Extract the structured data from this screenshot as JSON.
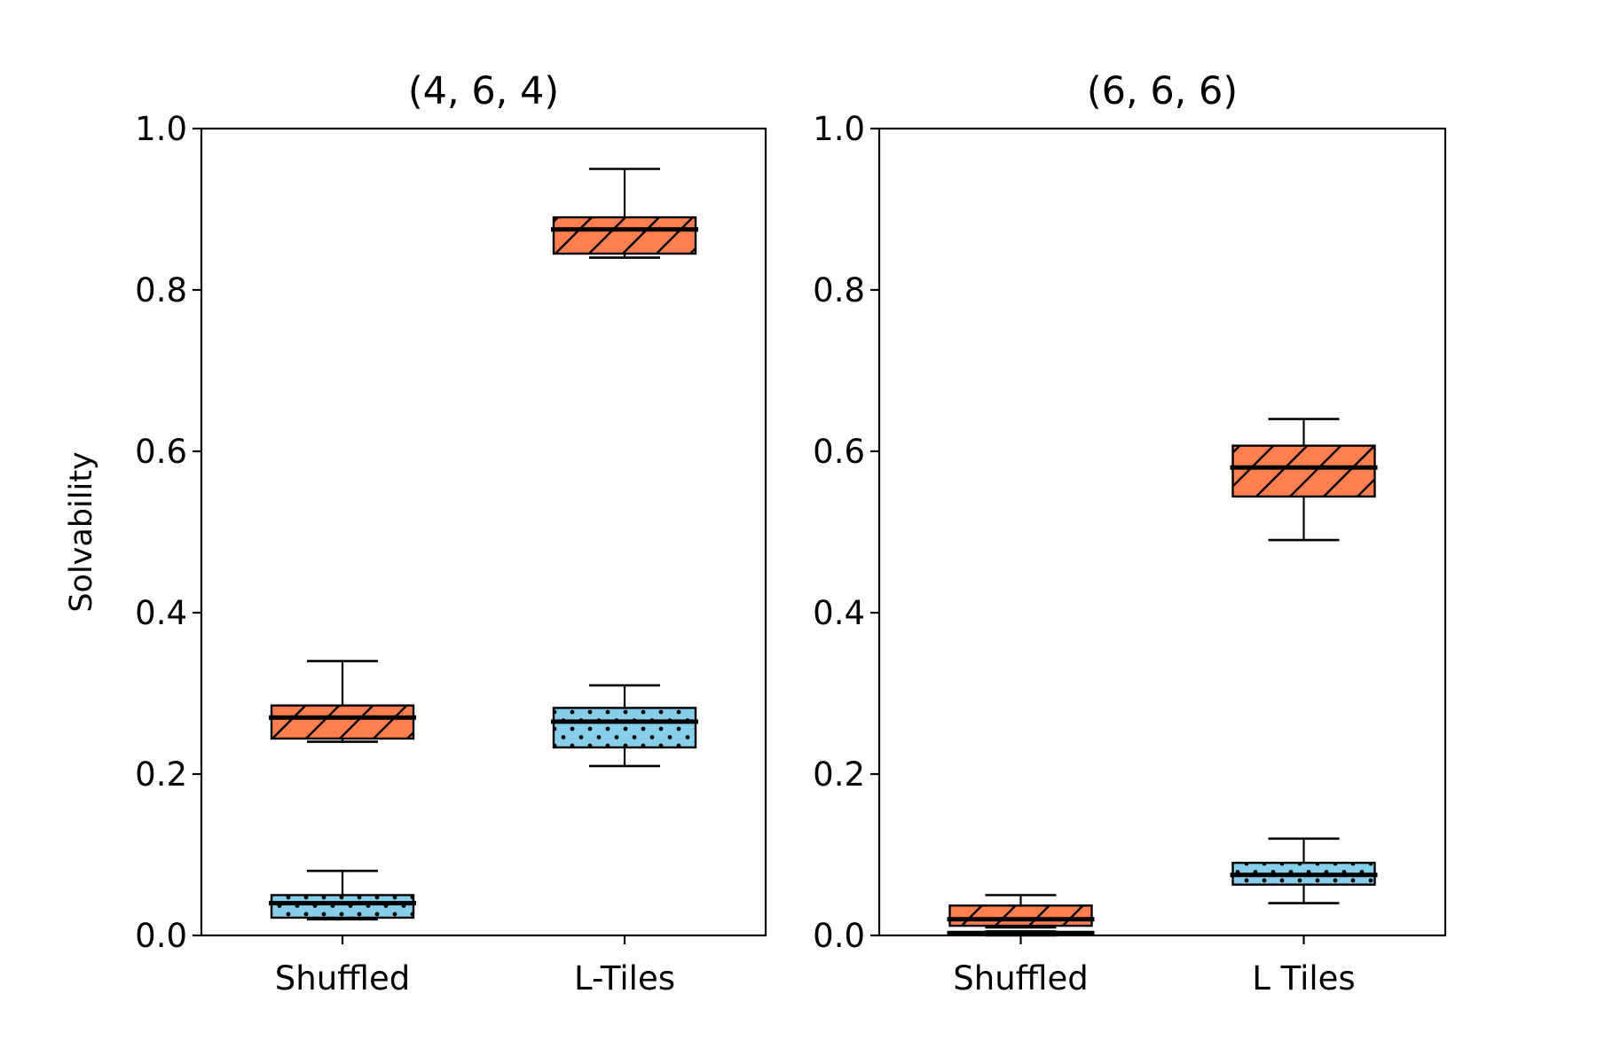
{
  "chart_data": [
    {
      "type": "box",
      "title": "(4, 6, 4)",
      "ylabel": "Solvability",
      "xlabel": "",
      "ylim": [
        0,
        1
      ],
      "yticks": [
        "0.0",
        "0.2",
        "0.4",
        "0.6",
        "0.8",
        "1.0"
      ],
      "categories": [
        "Shuffled",
        "L-Tiles"
      ],
      "grid": false,
      "series": [
        {
          "color": "#ff7f50",
          "hatch": "diagonal",
          "boxes": [
            {
              "category": "Shuffled",
              "min": 0.24,
              "q1": 0.244,
              "median": 0.27,
              "q3": 0.285,
              "max": 0.34
            },
            {
              "category": "L-Tiles",
              "min": 0.84,
              "q1": 0.845,
              "median": 0.875,
              "q3": 0.89,
              "max": 0.95
            }
          ]
        },
        {
          "color": "#87ceeb",
          "hatch": "dots",
          "boxes": [
            {
              "category": "Shuffled",
              "min": 0.02,
              "q1": 0.022,
              "median": 0.04,
              "q3": 0.05,
              "max": 0.08
            },
            {
              "category": "L-Tiles",
              "min": 0.21,
              "q1": 0.233,
              "median": 0.265,
              "q3": 0.282,
              "max": 0.31
            }
          ]
        }
      ]
    },
    {
      "type": "box",
      "title": "(6, 6, 6)",
      "ylabel": "",
      "xlabel": "",
      "ylim": [
        0,
        1
      ],
      "yticks": [
        "0.0",
        "0.2",
        "0.4",
        "0.6",
        "0.8",
        "1.0"
      ],
      "categories": [
        "Shuffled",
        "L Tiles"
      ],
      "grid": false,
      "series": [
        {
          "color": "#ff7f50",
          "hatch": "diagonal",
          "boxes": [
            {
              "category": "Shuffled",
              "min": 0.01,
              "q1": 0.012,
              "median": 0.02,
              "q3": 0.037,
              "max": 0.05
            },
            {
              "category": "L Tiles",
              "min": 0.49,
              "q1": 0.544,
              "median": 0.58,
              "q3": 0.607,
              "max": 0.64
            }
          ]
        },
        {
          "color": "#87ceeb",
          "hatch": "dots",
          "boxes": [
            {
              "category": "Shuffled",
              "min": 0.0,
              "q1": 0.002,
              "median": 0.003,
              "q3": 0.004,
              "max": 0.005
            },
            {
              "category": "L Tiles",
              "min": 0.04,
              "q1": 0.063,
              "median": 0.075,
              "q3": 0.09,
              "max": 0.12
            }
          ]
        }
      ]
    }
  ]
}
